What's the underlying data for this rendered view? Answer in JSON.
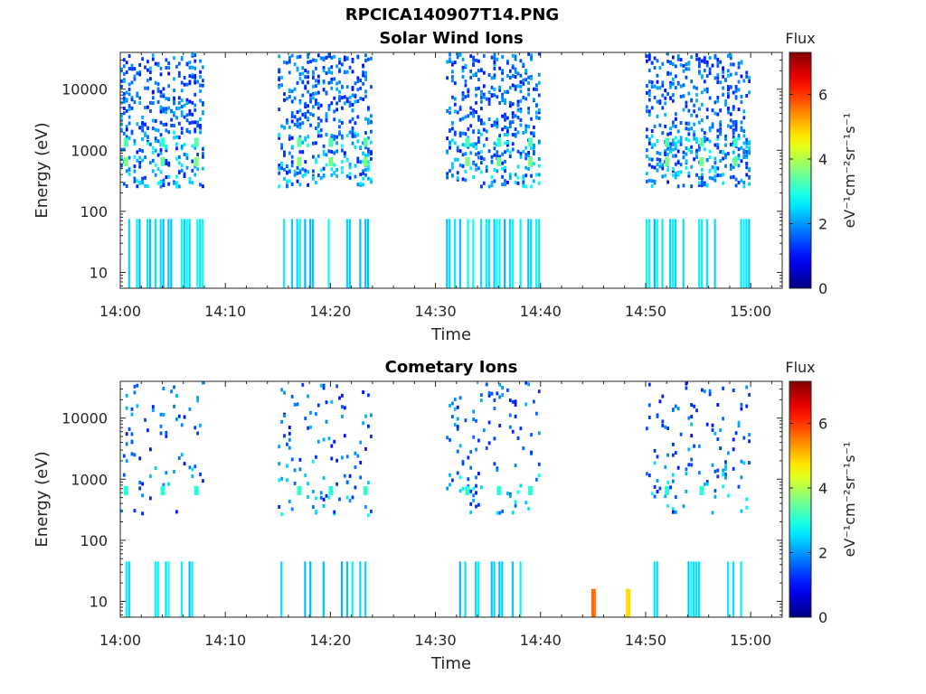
{
  "page": {
    "title": "RPCICA140907T14.PNG"
  },
  "chart_data": [
    {
      "type": "heatmap",
      "title": "Solar Wind Ions",
      "xlabel": "Time",
      "ylabel": "Energy (eV)",
      "x_ticks": [
        "14:00",
        "14:10",
        "14:20",
        "14:30",
        "14:40",
        "14:50",
        "15:00"
      ],
      "xlim": [
        "14:00",
        "15:03"
      ],
      "y_scale": "log",
      "y_ticks": [
        "10",
        "100",
        "1000",
        "10000"
      ],
      "ylim": [
        5.5,
        40000
      ],
      "colorbar": {
        "title": "Flux",
        "label": "eV⁻¹cm⁻²sr⁻¹s⁻¹",
        "ticks": [
          "0",
          "2",
          "4",
          "6"
        ],
        "range": [
          0,
          7.3
        ],
        "colormap": "jet"
      },
      "active_time_ranges": [
        [
          "14:00",
          "14:08"
        ],
        [
          "14:15",
          "14:24"
        ],
        [
          "14:31",
          "14:40"
        ],
        [
          "14:50",
          "15:00"
        ]
      ],
      "peaks": [
        {
          "time": "14:00.5",
          "energy": 650,
          "flux": 3.6
        },
        {
          "time": "14:00.5",
          "energy": 1350,
          "flux": 3.3
        },
        {
          "time": "14:04",
          "energy": 650,
          "flux": 3.4
        },
        {
          "time": "14:04",
          "energy": 1350,
          "flux": 3.1
        },
        {
          "time": "14:07.2",
          "energy": 650,
          "flux": 3.6
        },
        {
          "time": "14:07.2",
          "energy": 1350,
          "flux": 3.4
        },
        {
          "time": "14:17",
          "energy": 650,
          "flux": 3.7
        },
        {
          "time": "14:17",
          "energy": 1350,
          "flux": 3.4
        },
        {
          "time": "14:20",
          "energy": 650,
          "flux": 3.6
        },
        {
          "time": "14:20",
          "energy": 1350,
          "flux": 3.3
        },
        {
          "time": "14:23.3",
          "energy": 650,
          "flux": 3.7
        },
        {
          "time": "14:23.3",
          "energy": 1350,
          "flux": 3.4
        },
        {
          "time": "14:33",
          "energy": 650,
          "flux": 3.6
        },
        {
          "time": "14:33",
          "energy": 1350,
          "flux": 3.3
        },
        {
          "time": "14:36",
          "energy": 650,
          "flux": 3.5
        },
        {
          "time": "14:36",
          "energy": 1350,
          "flux": 3.2
        },
        {
          "time": "14:39",
          "energy": 650,
          "flux": 3.6
        },
        {
          "time": "14:39",
          "energy": 1350,
          "flux": 3.3
        },
        {
          "time": "14:52",
          "energy": 650,
          "flux": 3.6
        },
        {
          "time": "14:52",
          "energy": 1350,
          "flux": 3.3
        },
        {
          "time": "14:55.3",
          "energy": 650,
          "flux": 3.6
        },
        {
          "time": "14:55.3",
          "energy": 1350,
          "flux": 3.3
        },
        {
          "time": "14:58.5",
          "energy": 650,
          "flux": 3.5
        },
        {
          "time": "14:58.5",
          "energy": 1350,
          "flux": 3.2
        }
      ]
    },
    {
      "type": "heatmap",
      "title": "Cometary Ions",
      "xlabel": "Time",
      "ylabel": "Energy (eV)",
      "x_ticks": [
        "14:00",
        "14:10",
        "14:20",
        "14:30",
        "14:40",
        "14:50",
        "15:00"
      ],
      "xlim": [
        "14:00",
        "15:03"
      ],
      "y_scale": "log",
      "y_ticks": [
        "10",
        "100",
        "1000",
        "10000"
      ],
      "ylim": [
        5.5,
        40000
      ],
      "colorbar": {
        "title": "Flux",
        "label": "eV⁻¹cm⁻²sr⁻¹s⁻¹",
        "ticks": [
          "0",
          "2",
          "4",
          "6"
        ],
        "range": [
          0,
          7.3
        ],
        "colormap": "jet"
      },
      "active_time_ranges": [
        [
          "14:00",
          "14:08"
        ],
        [
          "14:15",
          "14:24"
        ],
        [
          "14:31",
          "14:40"
        ],
        [
          "14:50",
          "15:00"
        ]
      ],
      "peaks": [
        {
          "time": "14:00.5",
          "energy": 650,
          "flux": 3.0
        },
        {
          "time": "14:04",
          "energy": 650,
          "flux": 3.0
        },
        {
          "time": "14:07.2",
          "energy": 650,
          "flux": 3.0
        },
        {
          "time": "14:17",
          "energy": 650,
          "flux": 3.1
        },
        {
          "time": "14:20",
          "energy": 650,
          "flux": 3.0
        },
        {
          "time": "14:23.3",
          "energy": 650,
          "flux": 3.1
        },
        {
          "time": "14:33",
          "energy": 650,
          "flux": 3.0
        },
        {
          "time": "14:36",
          "energy": 650,
          "flux": 3.0
        },
        {
          "time": "14:39",
          "energy": 650,
          "flux": 3.0
        },
        {
          "time": "14:52",
          "energy": 650,
          "flux": 3.0
        },
        {
          "time": "14:55.3",
          "energy": 650,
          "flux": 3.0
        },
        {
          "time": "14:45",
          "energy": 10,
          "flux": 5.6
        },
        {
          "time": "14:48.3",
          "energy": 10,
          "flux": 4.8
        }
      ]
    }
  ]
}
